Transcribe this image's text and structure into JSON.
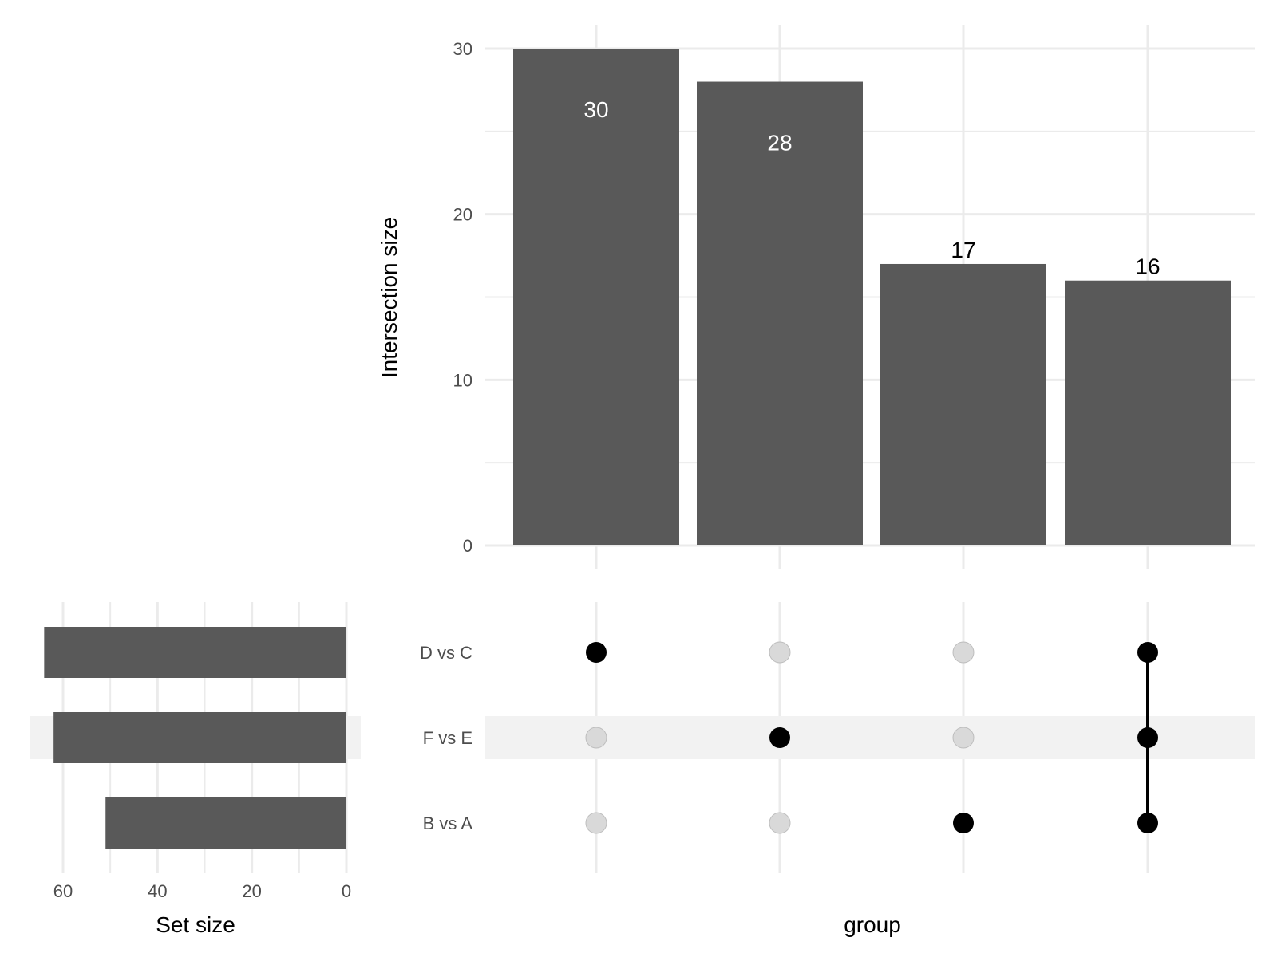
{
  "chart_data": {
    "type": "upset",
    "intersection_bars": {
      "ylabel": "Intersection size",
      "ylim": [
        0,
        30
      ],
      "yticks": [
        "0",
        "10",
        "20",
        "30"
      ],
      "values": [
        30,
        28,
        17,
        16
      ],
      "labels": [
        "30",
        "28",
        "17",
        "16"
      ],
      "bar_color": "#595959",
      "label_inside_color": "#ffffff",
      "label_outside_color": "#000000"
    },
    "sets": [
      "D vs C",
      "F vs E",
      "B vs A"
    ],
    "set_size_bars": {
      "xlabel": "Set size",
      "xlim": [
        0,
        64
      ],
      "xticks": [
        "60",
        "40",
        "20",
        "0"
      ],
      "values": [
        64,
        62,
        51
      ],
      "bar_color": "#595959"
    },
    "matrix": {
      "xlabel": "group",
      "membership": [
        [
          true,
          false,
          false
        ],
        [
          false,
          true,
          false
        ],
        [
          false,
          false,
          true
        ],
        [
          true,
          true,
          true
        ]
      ],
      "active_color": "#000000",
      "inactive_color": "#d9d9d9",
      "stripe_color": "#f2f2f2"
    }
  }
}
